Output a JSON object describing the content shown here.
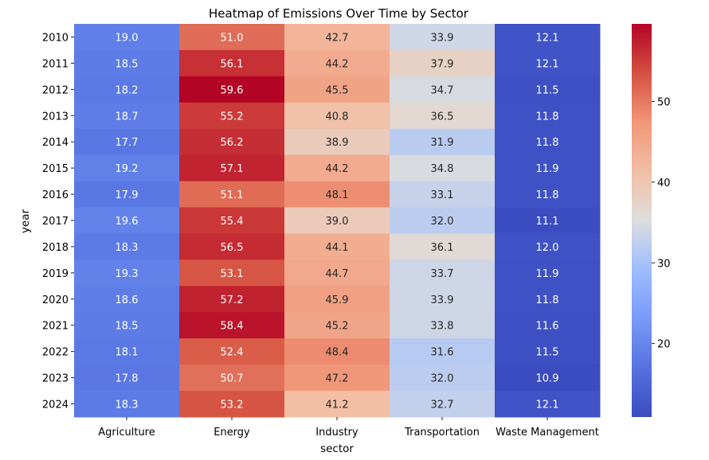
{
  "chart_data": {
    "type": "heatmap",
    "title": "Heatmap of Emissions Over Time by Sector",
    "xlabel": "sector",
    "ylabel": "year",
    "x_categories": [
      "Agriculture",
      "Energy",
      "Industry",
      "Transportation",
      "Waste Management"
    ],
    "y_categories": [
      "2010",
      "2011",
      "2012",
      "2013",
      "2014",
      "2015",
      "2016",
      "2017",
      "2018",
      "2019",
      "2020",
      "2021",
      "2022",
      "2023",
      "2024"
    ],
    "values": [
      [
        19.0,
        51.0,
        42.7,
        33.9,
        12.1
      ],
      [
        18.5,
        56.1,
        44.2,
        37.9,
        12.1
      ],
      [
        18.2,
        59.6,
        45.5,
        34.7,
        11.5
      ],
      [
        18.7,
        55.2,
        40.8,
        36.5,
        11.8
      ],
      [
        17.7,
        56.2,
        38.9,
        31.9,
        11.8
      ],
      [
        19.2,
        57.1,
        44.2,
        34.8,
        11.9
      ],
      [
        17.9,
        51.1,
        48.1,
        33.1,
        11.8
      ],
      [
        19.6,
        55.4,
        39.0,
        32.0,
        11.1
      ],
      [
        18.3,
        56.5,
        44.1,
        36.1,
        12.0
      ],
      [
        19.3,
        53.1,
        44.7,
        33.7,
        11.9
      ],
      [
        18.6,
        57.2,
        45.9,
        33.9,
        11.8
      ],
      [
        18.5,
        58.4,
        45.2,
        33.8,
        11.6
      ],
      [
        18.1,
        52.4,
        48.4,
        31.6,
        11.5
      ],
      [
        17.8,
        50.7,
        47.2,
        32.0,
        10.9
      ],
      [
        18.3,
        53.2,
        41.2,
        32.7,
        12.1
      ]
    ],
    "colormap": "coolwarm",
    "vmin": 10.9,
    "vmax": 59.6,
    "colorbar_ticks": [
      20,
      30,
      40,
      50
    ],
    "annotated": true,
    "value_format": "0.1f"
  }
}
